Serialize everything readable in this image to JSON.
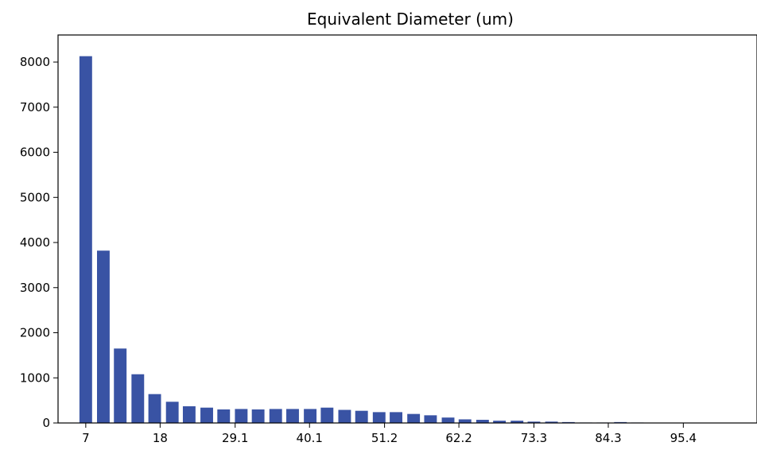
{
  "chart_data": {
    "type": "bar",
    "title": "Equivalent Diameter (um)",
    "xlabel": "",
    "ylabel": "",
    "bar_color": "#3953a4",
    "x": [
      7,
      9.6,
      12.1,
      14.7,
      17.2,
      19.8,
      22.3,
      24.9,
      27.4,
      30.0,
      32.5,
      35.1,
      37.6,
      40.2,
      42.7,
      45.3,
      47.8,
      50.4,
      52.9,
      55.5,
      58.0,
      60.6,
      63.1,
      65.7,
      68.2,
      70.8,
      73.3,
      75.9,
      78.4,
      81.0,
      83.5,
      86.1,
      88.6,
      91.2,
      93.7,
      96.3,
      98.8
    ],
    "values": [
      8130,
      3820,
      1650,
      1080,
      640,
      470,
      370,
      340,
      300,
      310,
      300,
      310,
      310,
      310,
      340,
      290,
      270,
      240,
      240,
      200,
      170,
      120,
      80,
      70,
      50,
      50,
      30,
      30,
      20,
      10,
      10,
      20,
      10,
      5,
      5,
      5,
      5
    ],
    "xlim": [
      2.9,
      106.3
    ],
    "ylim": [
      0,
      8600
    ],
    "xticks": [
      7,
      18,
      29.1,
      40.1,
      51.2,
      62.2,
      73.3,
      84.3,
      95.4
    ],
    "xtick_labels": [
      "7",
      "18",
      "29.1",
      "40.1",
      "51.2",
      "62.2",
      "73.3",
      "84.3",
      "95.4"
    ],
    "yticks": [
      0,
      1000,
      2000,
      3000,
      4000,
      5000,
      6000,
      7000,
      8000
    ],
    "ytick_labels": [
      "0",
      "1000",
      "2000",
      "3000",
      "4000",
      "5000",
      "6000",
      "7000",
      "8000"
    ],
    "grid": false,
    "legend": null
  }
}
